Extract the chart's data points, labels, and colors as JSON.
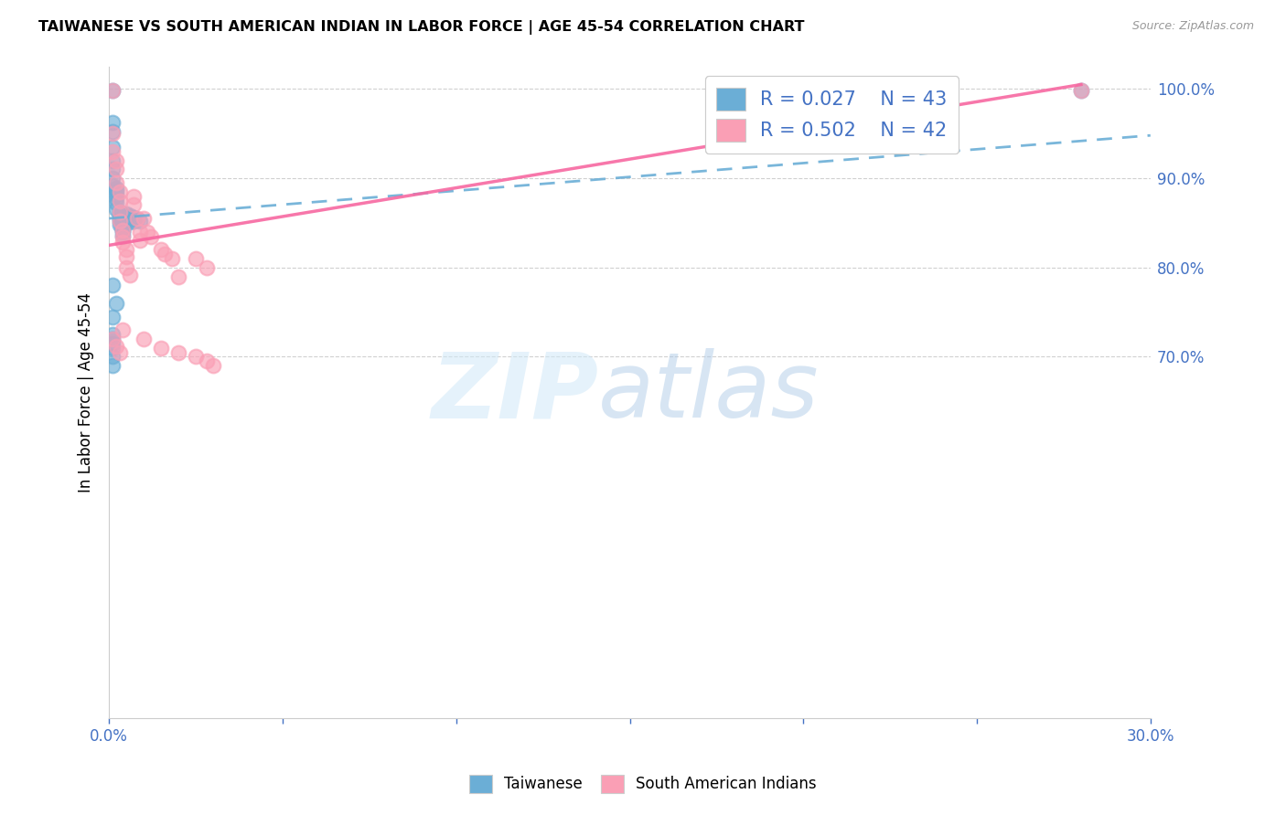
{
  "title": "TAIWANESE VS SOUTH AMERICAN INDIAN IN LABOR FORCE | AGE 45-54 CORRELATION CHART",
  "source": "Source: ZipAtlas.com",
  "ylabel": "In Labor Force | Age 45-54",
  "xlim": [
    0.0,
    0.3
  ],
  "ylim": [
    0.295,
    1.025
  ],
  "yticks": [
    1.0,
    0.9,
    0.8,
    0.7
  ],
  "ytick_labels": [
    "100.0%",
    "90.0%",
    "80.0%",
    "70.0%"
  ],
  "xticks": [
    0.0,
    0.05,
    0.1,
    0.15,
    0.2,
    0.25,
    0.3
  ],
  "xtick_labels": [
    "0.0%",
    "",
    "",
    "",
    "",
    "",
    "30.0%"
  ],
  "r_taiwanese": 0.027,
  "n_taiwanese": 43,
  "r_south_american": 0.502,
  "n_south_american": 42,
  "blue_color": "#6baed6",
  "pink_color": "#fa9fb5",
  "blue_line_color": "#6baed6",
  "pink_line_color": "#f768a1",
  "axis_color": "#4472c4",
  "tw_line_x0": 0.0,
  "tw_line_x1": 0.3,
  "tw_line_y0": 0.855,
  "tw_line_y1": 0.948,
  "sa_line_x0": 0.0,
  "sa_line_x1": 0.28,
  "sa_line_y0": 0.825,
  "sa_line_y1": 1.005,
  "tw_x": [
    0.001,
    0.001,
    0.001,
    0.001,
    0.001,
    0.001,
    0.001,
    0.001,
    0.002,
    0.002,
    0.002,
    0.002,
    0.002,
    0.002,
    0.003,
    0.003,
    0.003,
    0.003,
    0.003,
    0.004,
    0.004,
    0.004,
    0.004,
    0.005,
    0.005,
    0.005,
    0.006,
    0.006,
    0.006,
    0.007,
    0.007,
    0.008,
    0.009,
    0.001,
    0.002,
    0.001,
    0.001,
    0.001,
    0.001,
    0.001,
    0.001,
    0.001,
    0.28
  ],
  "tw_y": [
    0.998,
    0.963,
    0.952,
    0.935,
    0.92,
    0.91,
    0.9,
    0.892,
    0.889,
    0.886,
    0.882,
    0.878,
    0.872,
    0.865,
    0.862,
    0.858,
    0.855,
    0.852,
    0.848,
    0.845,
    0.842,
    0.84,
    0.836,
    0.86,
    0.857,
    0.854,
    0.858,
    0.854,
    0.851,
    0.856,
    0.852,
    0.854,
    0.852,
    0.78,
    0.76,
    0.745,
    0.725,
    0.72,
    0.715,
    0.71,
    0.7,
    0.69,
    0.998
  ],
  "sa_x": [
    0.001,
    0.001,
    0.001,
    0.002,
    0.002,
    0.002,
    0.003,
    0.003,
    0.003,
    0.003,
    0.004,
    0.004,
    0.004,
    0.005,
    0.005,
    0.005,
    0.006,
    0.007,
    0.007,
    0.008,
    0.009,
    0.009,
    0.01,
    0.011,
    0.012,
    0.015,
    0.016,
    0.018,
    0.02,
    0.025,
    0.028,
    0.001,
    0.002,
    0.003,
    0.004,
    0.01,
    0.015,
    0.02,
    0.025,
    0.028,
    0.03,
    0.28
  ],
  "sa_y": [
    0.998,
    0.95,
    0.93,
    0.92,
    0.91,
    0.895,
    0.885,
    0.875,
    0.862,
    0.852,
    0.842,
    0.835,
    0.828,
    0.82,
    0.812,
    0.8,
    0.792,
    0.88,
    0.87,
    0.855,
    0.84,
    0.83,
    0.855,
    0.84,
    0.835,
    0.82,
    0.815,
    0.81,
    0.79,
    0.81,
    0.8,
    0.72,
    0.712,
    0.705,
    0.73,
    0.72,
    0.71,
    0.705,
    0.7,
    0.695,
    0.69,
    0.998
  ]
}
